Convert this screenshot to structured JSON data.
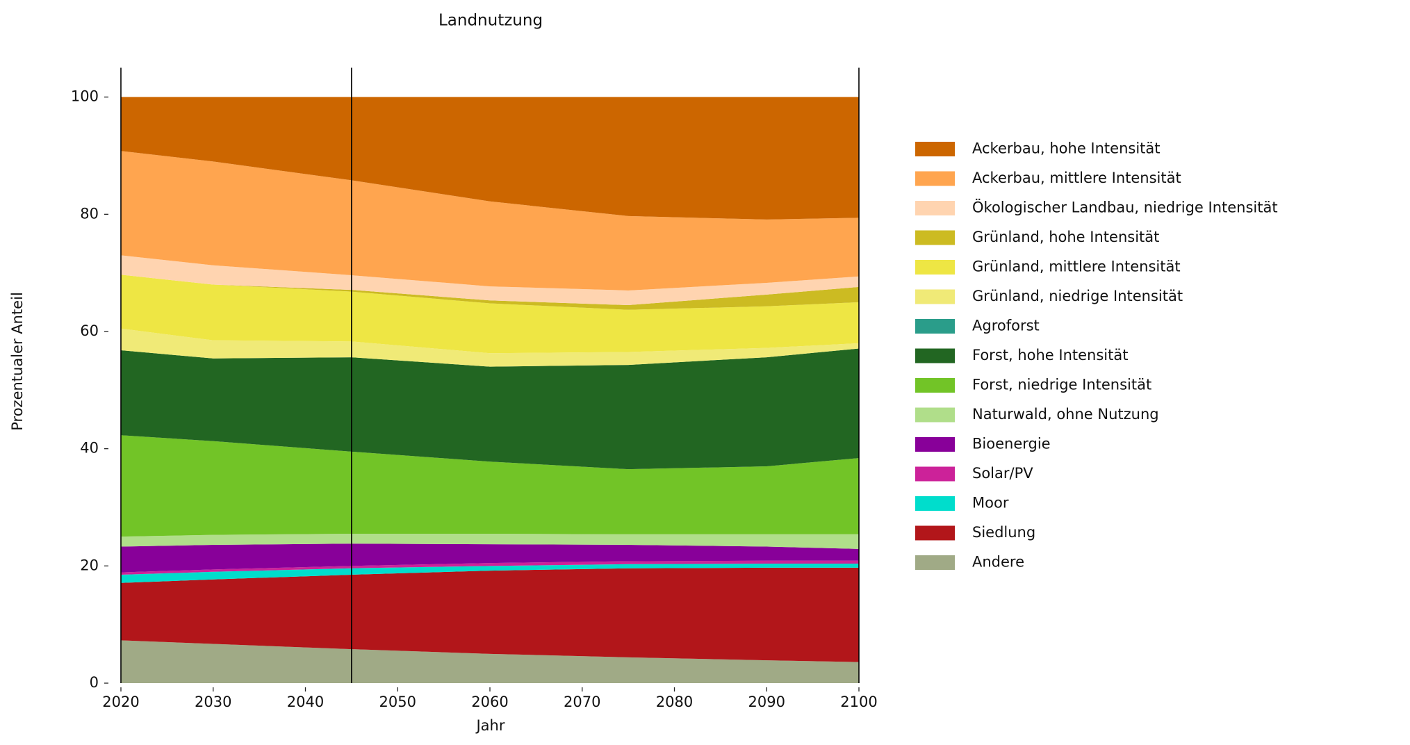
{
  "chart_data": {
    "type": "stacked-area",
    "title": "Landnutzung",
    "xlabel": "Jahr",
    "ylabel": "Prozentualer Anteil",
    "x": [
      2020,
      2030,
      2045,
      2060,
      2075,
      2090,
      2100
    ],
    "xlim": [
      2020,
      2100
    ],
    "xticks": [
      2020,
      2030,
      2040,
      2050,
      2060,
      2070,
      2080,
      2090,
      2100
    ],
    "ylim": [
      0,
      105
    ],
    "yticks": [
      0,
      20,
      40,
      60,
      80,
      100
    ],
    "vlines": [
      2020,
      2045,
      2100
    ],
    "series": [
      {
        "name": "Andere",
        "color": "#a0aa86",
        "values": [
          7.3,
          6.7,
          5.8,
          5.0,
          4.4,
          3.9,
          3.6
        ]
      },
      {
        "name": "Siedlung",
        "color": "#b2161a",
        "values": [
          9.8,
          11.0,
          12.7,
          14.2,
          15.2,
          15.8,
          16.1
        ]
      },
      {
        "name": "Moor",
        "color": "#00ddcc",
        "values": [
          1.4,
          1.3,
          1.1,
          0.8,
          0.7,
          0.7,
          0.7
        ]
      },
      {
        "name": "Solar/PV",
        "color": "#cc2299",
        "values": [
          0.4,
          0.4,
          0.4,
          0.5,
          0.5,
          0.5,
          0.5
        ]
      },
      {
        "name": "Bioenergie",
        "color": "#880099",
        "values": [
          4.4,
          4.2,
          3.8,
          3.2,
          2.8,
          2.4,
          2.0
        ]
      },
      {
        "name": "Naturwald, ohne Nutzung",
        "color": "#b0de8a",
        "values": [
          1.7,
          1.7,
          1.7,
          1.8,
          1.8,
          2.1,
          2.5
        ]
      },
      {
        "name": "Forst, niedrige Intensität",
        "color": "#72c427",
        "values": [
          17.3,
          16.0,
          14.0,
          12.3,
          11.1,
          11.6,
          13.0
        ]
      },
      {
        "name": "Forst, hohe Intensität",
        "color": "#226622",
        "values": [
          14.5,
          14.1,
          16.1,
          16.2,
          17.8,
          18.6,
          18.7
        ]
      },
      {
        "name": "Agroforst",
        "color": "#2a9d8a",
        "values": [
          0,
          0,
          0,
          0,
          0,
          0,
          0
        ]
      },
      {
        "name": "Grünland, niedrige Intensität",
        "color": "#f0ea77",
        "values": [
          3.7,
          3.1,
          2.7,
          2.3,
          2.2,
          1.6,
          0.9
        ]
      },
      {
        "name": "Grünland, mittlere Intensität",
        "color": "#eee644",
        "values": [
          9.2,
          9.5,
          8.5,
          8.5,
          7.2,
          7.1,
          7.0
        ]
      },
      {
        "name": "Grünland, hohe Intensität",
        "color": "#ccbb22",
        "values": [
          0,
          0,
          0.3,
          0.5,
          0.8,
          2.0,
          2.6
        ]
      },
      {
        "name": "Ökologischer Landbau, niedrige Intensität",
        "color": "#ffd4b0",
        "values": [
          3.3,
          3.3,
          2.5,
          2.4,
          2.5,
          2.0,
          1.8
        ]
      },
      {
        "name": "Ackerbau, mittlere Intensität",
        "color": "#ffa54f",
        "values": [
          17.8,
          17.7,
          16.2,
          14.5,
          12.7,
          10.8,
          10.0
        ]
      },
      {
        "name": "Ackerbau, hohe Intensität",
        "color": "#cc6600",
        "values": [
          9.2,
          11.0,
          14.2,
          17.8,
          20.3,
          20.9,
          20.6
        ]
      }
    ]
  }
}
